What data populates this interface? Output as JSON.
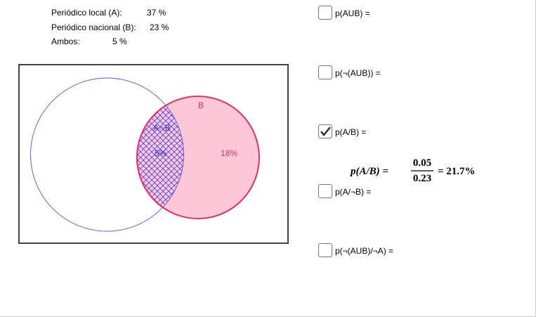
{
  "info": [
    {
      "label": "Periódico local (A):",
      "value": "37 %"
    },
    {
      "label": "Periódico nacional (B):",
      "value": "23 %"
    },
    {
      "label": "Ambos:",
      "value": "5 %"
    }
  ],
  "venn": {
    "b_label": "B",
    "intersection_label": "A∩B",
    "intersection_value": "5%",
    "b_only_value": "18%"
  },
  "options": [
    {
      "label": "p(AUB) =",
      "checked": false
    },
    {
      "label": "p(¬(AUB)) =",
      "checked": false
    },
    {
      "label": "p(A/B) =",
      "checked": true
    },
    {
      "label": "p(A/¬B) =",
      "checked": false
    },
    {
      "label": "p(¬(AUB)/¬A) =",
      "checked": false
    }
  ],
  "formula": {
    "lhs": "p(A/B) =",
    "numerator": "0.05",
    "denominator": "0.23",
    "result": "= 21.7%"
  }
}
